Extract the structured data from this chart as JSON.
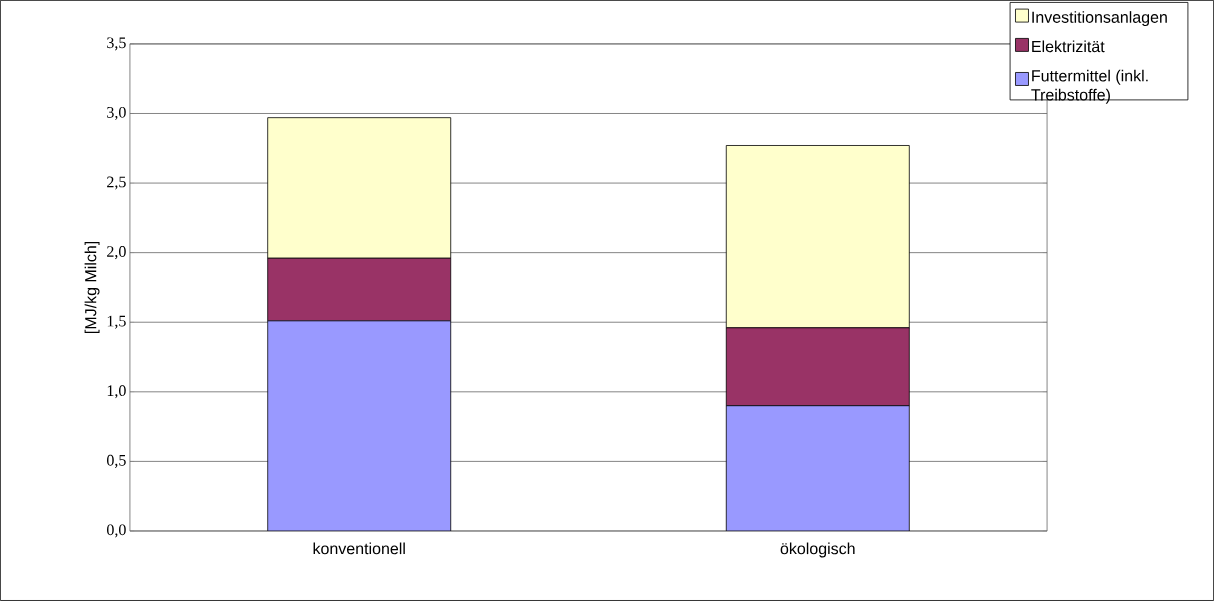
{
  "chart_data": {
    "type": "bar",
    "stacked": true,
    "ylabel": "[MJ/kg Milch]",
    "categories": [
      "konventionell",
      "ökologisch"
    ],
    "series": [
      {
        "name": "Futtermittel (inkl. Treibstoffe)",
        "color": "#9999ff",
        "values": [
          1.51,
          0.9
        ]
      },
      {
        "name": "Elektrizität",
        "color": "#993366",
        "values": [
          0.45,
          0.56
        ]
      },
      {
        "name": "Investitionsanlagen",
        "color": "#ffffcc",
        "values": [
          1.01,
          1.31
        ]
      }
    ],
    "ylim": [
      0,
      3.5
    ],
    "yticks": [
      {
        "value": 0,
        "label": "0,0"
      },
      {
        "value": 0.5,
        "label": "0,5"
      },
      {
        "value": 1,
        "label": "1,0"
      },
      {
        "value": 1.5,
        "label": "1,5"
      },
      {
        "value": 2,
        "label": "2,0"
      },
      {
        "value": 2.5,
        "label": "2,5"
      },
      {
        "value": 3,
        "label": "3,0"
      },
      {
        "value": 3.5,
        "label": "3,5"
      }
    ],
    "grid": "y",
    "legend": "top right"
  }
}
